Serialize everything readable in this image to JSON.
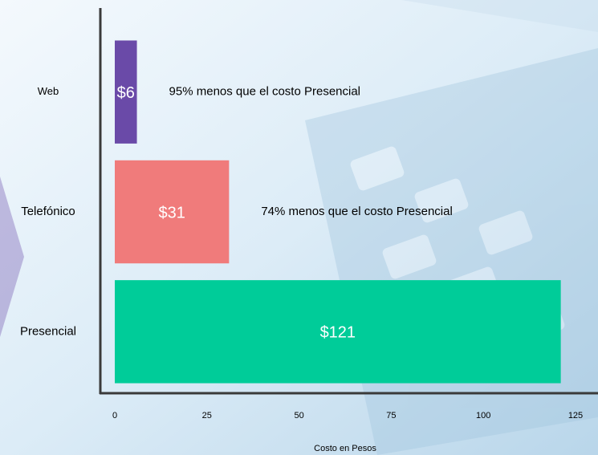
{
  "chart_data": {
    "type": "bar",
    "orientation": "horizontal",
    "categories": [
      "Web",
      "Telefónico",
      "Presencial"
    ],
    "values": [
      6,
      31,
      121
    ],
    "value_labels": [
      "$6",
      "$31",
      "$121"
    ],
    "colors": [
      "#6a4aa8",
      "#f07b7b",
      "#00cc99"
    ],
    "annotations": [
      "95% menos que el costo Presencial",
      "74% menos que el costo Presencial"
    ],
    "xlabel": "Costo en Pesos",
    "xlim": [
      0,
      125
    ],
    "xticks": [
      0,
      25,
      50,
      75,
      100,
      125
    ],
    "grid": false
  }
}
